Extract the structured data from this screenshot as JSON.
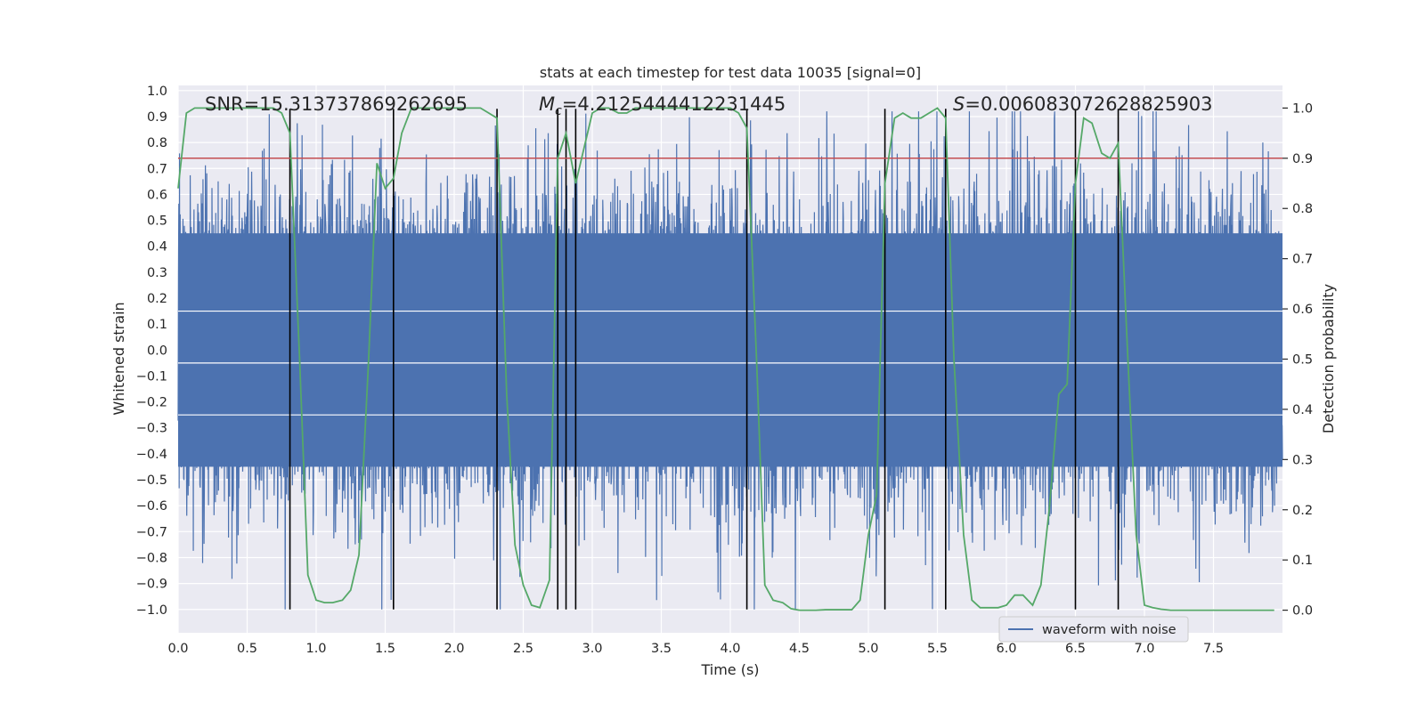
{
  "chart_data": {
    "type": "line",
    "title": "stats at each timestep for test data 10035 [signal=0]",
    "xlabel": "Time (s)",
    "ylabel_left": "Whitened strain",
    "ylabel_right": "Detection probability",
    "xlim": [
      0,
      8.0
    ],
    "ylim_left": [
      -1.09,
      1.02
    ],
    "ylim_right": [
      -0.045,
      1.045
    ],
    "x_ticks": [
      0.0,
      0.5,
      1.0,
      1.5,
      2.0,
      2.5,
      3.0,
      3.5,
      4.0,
      4.5,
      5.0,
      5.5,
      6.0,
      6.5,
      7.0,
      7.5
    ],
    "x_tick_labels": [
      "0.0",
      "0.5",
      "1.0",
      "1.5",
      "2.0",
      "2.5",
      "3.0",
      "3.5",
      "4.0",
      "4.5",
      "5.0",
      "5.5",
      "6.0",
      "6.5",
      "7.0",
      "7.5"
    ],
    "y_left_ticks": [
      -1.0,
      -0.9,
      -0.8,
      -0.7,
      -0.6,
      -0.5,
      -0.4,
      -0.3,
      -0.2,
      -0.1,
      0.0,
      0.1,
      0.2,
      0.3,
      0.4,
      0.5,
      0.6,
      0.7,
      0.8,
      0.9,
      1.0
    ],
    "y_left_tick_labels": [
      "−1.0",
      "−0.9",
      "−0.8",
      "−0.7",
      "−0.6",
      "−0.5",
      "−0.4",
      "−0.3",
      "−0.2",
      "−0.1",
      "0.0",
      "0.1",
      "0.2",
      "0.3",
      "0.4",
      "0.5",
      "0.6",
      "0.7",
      "0.8",
      "0.9",
      "1.0"
    ],
    "y_right_ticks": [
      0.0,
      0.1,
      0.2,
      0.3,
      0.4,
      0.5,
      0.6,
      0.7,
      0.8,
      0.9,
      1.0
    ],
    "y_right_tick_labels": [
      "0.0",
      "0.1",
      "0.2",
      "0.3",
      "0.4",
      "0.5",
      "0.6",
      "0.7",
      "0.8",
      "0.9",
      "1.0"
    ],
    "grid": true,
    "legend": {
      "placement": "bottom-right",
      "entries": [
        "waveform with noise"
      ]
    },
    "annotations": {
      "snr": "SNR=15.313737869262695",
      "mc": "=4.2125444412231445",
      "mc_symbol": "M",
      "mc_sub": "c",
      "s": "=0.006083072628825903",
      "s_symbol": "S"
    },
    "threshold": 0.9,
    "vertical_markers": [
      0.81,
      1.56,
      2.31,
      2.75,
      2.81,
      2.88,
      4.12,
      5.12,
      5.56,
      6.5,
      6.81
    ],
    "marker_range": [
      -1.0,
      0.93
    ],
    "series": [
      {
        "name": "waveform with noise",
        "axis": "left",
        "style": "noise",
        "band": [
          -0.45,
          0.45
        ],
        "duration": 8.0
      },
      {
        "axis": "right",
        "style": "line",
        "x": [
          0.0,
          0.06,
          0.12,
          0.19,
          0.25,
          0.31,
          0.38,
          0.44,
          0.5,
          0.56,
          0.62,
          0.69,
          0.75,
          0.81,
          0.88,
          0.94,
          1.0,
          1.06,
          1.12,
          1.19,
          1.25,
          1.31,
          1.38,
          1.44,
          1.5,
          1.56,
          1.62,
          1.69,
          1.75,
          1.81,
          1.88,
          1.94,
          2.0,
          2.06,
          2.12,
          2.19,
          2.25,
          2.31,
          2.38,
          2.44,
          2.5,
          2.56,
          2.62,
          2.69,
          2.75,
          2.81,
          2.88,
          2.94,
          3.0,
          3.06,
          3.12,
          3.19,
          3.25,
          3.31,
          3.38,
          3.44,
          3.5,
          3.56,
          3.62,
          3.69,
          3.75,
          3.81,
          3.88,
          3.94,
          4.0,
          4.06,
          4.12,
          4.19,
          4.25,
          4.31,
          4.38,
          4.44,
          4.5,
          4.56,
          4.62,
          4.69,
          4.75,
          4.81,
          4.88,
          4.94,
          5.0,
          5.06,
          5.12,
          5.19,
          5.25,
          5.31,
          5.38,
          5.44,
          5.5,
          5.56,
          5.62,
          5.69,
          5.75,
          5.81,
          5.88,
          5.94,
          6.0,
          6.06,
          6.12,
          6.19,
          6.25,
          6.31,
          6.38,
          6.44,
          6.5,
          6.56,
          6.62,
          6.69,
          6.75,
          6.81,
          6.88,
          6.94,
          7.0,
          7.06,
          7.12,
          7.19,
          7.25,
          7.31,
          7.38,
          7.44,
          7.5,
          7.56,
          7.62,
          7.69,
          7.75,
          7.81,
          7.88,
          7.94
        ],
        "y": [
          0.84,
          0.99,
          1.0,
          1.0,
          1.0,
          1.0,
          1.0,
          1.0,
          1.0,
          1.0,
          1.0,
          1.0,
          0.99,
          0.95,
          0.5,
          0.07,
          0.02,
          0.015,
          0.015,
          0.02,
          0.04,
          0.11,
          0.5,
          0.89,
          0.84,
          0.86,
          0.95,
          1.0,
          1.0,
          1.0,
          1.0,
          1.0,
          1.0,
          1.0,
          1.0,
          1.0,
          0.99,
          0.98,
          0.43,
          0.13,
          0.05,
          0.01,
          0.005,
          0.06,
          0.9,
          0.95,
          0.85,
          0.92,
          0.99,
          1.0,
          1.0,
          0.99,
          0.99,
          1.0,
          1.0,
          1.0,
          1.0,
          1.0,
          1.0,
          1.0,
          1.0,
          1.0,
          1.0,
          1.0,
          1.0,
          0.99,
          0.96,
          0.5,
          0.05,
          0.02,
          0.015,
          0.003,
          0.0,
          0.0,
          0.0,
          0.001,
          0.001,
          0.001,
          0.001,
          0.02,
          0.15,
          0.23,
          0.85,
          0.98,
          0.99,
          0.98,
          0.98,
          0.99,
          1.0,
          0.98,
          0.5,
          0.15,
          0.02,
          0.005,
          0.005,
          0.005,
          0.01,
          0.03,
          0.03,
          0.01,
          0.05,
          0.2,
          0.43,
          0.45,
          0.85,
          0.98,
          0.97,
          0.91,
          0.9,
          0.93,
          0.5,
          0.15,
          0.01,
          0.005,
          0.002,
          0.0,
          0.0,
          0.0,
          0.0,
          0.0,
          0.0,
          0.0,
          0.0,
          0.0,
          0.0,
          0.0,
          0.0,
          0.0
        ]
      }
    ],
    "colors": {
      "background": "#ffffff",
      "plot_area": "#eaeaf2",
      "grid": "#ffffff",
      "waveform": "#4c72b0",
      "probability": "#55a868",
      "threshold": "#c44e52",
      "markers": "#000000",
      "text": "#262626"
    }
  }
}
